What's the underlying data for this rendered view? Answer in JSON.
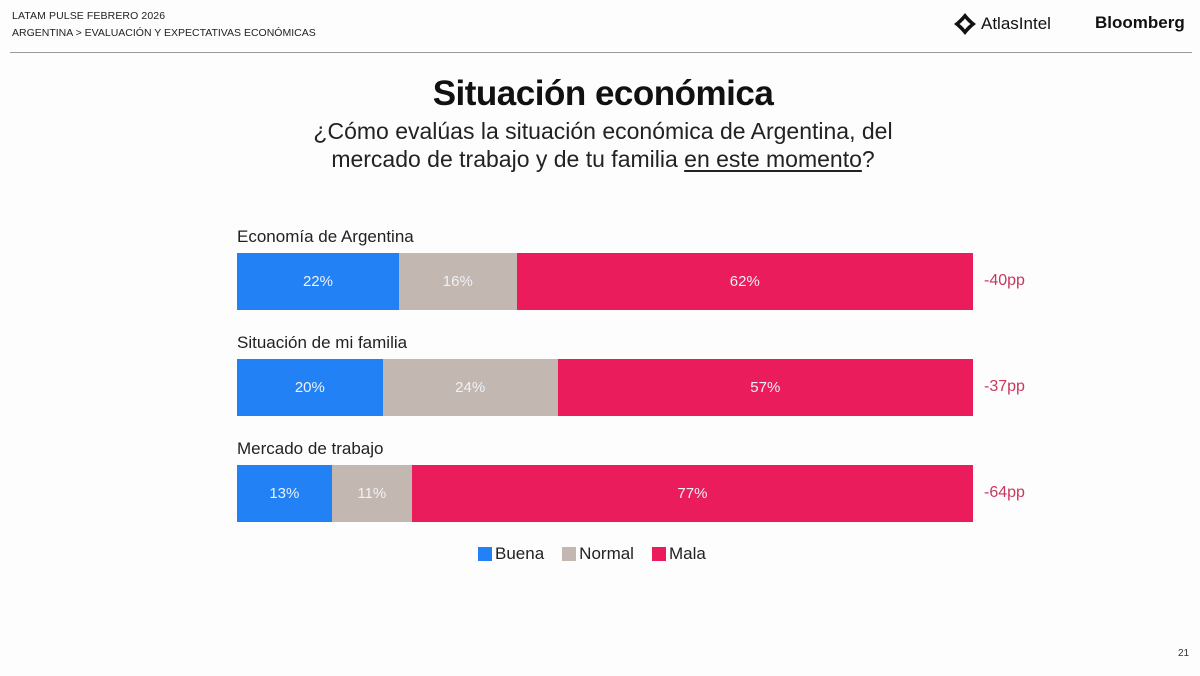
{
  "header": {
    "line1": "LATAM PULSE FEBRERO 2026",
    "line2": "ARGENTINA > EVALUACIÓN Y EXPECTATIVAS ECONÓMICAS",
    "logo_atlas": "AtlasIntel",
    "logo_bloomberg": "Bloomberg"
  },
  "title": "Situación económica",
  "subtitle": {
    "line1": "¿Cómo evalúas la situación económica de Argentina, del",
    "line2_prefix": "mercado de trabajo y de tu familia ",
    "line2_underlined": "en este momento",
    "line2_suffix": "?"
  },
  "page_number": "21",
  "chart_data": {
    "type": "bar",
    "orientation": "horizontal",
    "stacked": true,
    "normalized": true,
    "title": "Situación económica",
    "categories": [
      "Economía de Argentina",
      "Situación de mi familia",
      "Mercado de trabajo"
    ],
    "series": [
      {
        "name": "Buena",
        "color": "#2281f5",
        "values": [
          22,
          20,
          13
        ],
        "labels": [
          "22%",
          "20%",
          "13%"
        ]
      },
      {
        "name": "Normal",
        "color": "#c2b7b1",
        "values": [
          16,
          24,
          11
        ],
        "labels": [
          "16%",
          "24%",
          "11%"
        ]
      },
      {
        "name": "Mala",
        "color": "#ea1c5b",
        "values": [
          62,
          57,
          77
        ],
        "labels": [
          "62%",
          "57%",
          "77%"
        ]
      }
    ],
    "net": [
      "-40pp",
      "-37pp",
      "-64pp"
    ],
    "legend": [
      "Buena",
      "Normal",
      "Mala"
    ],
    "legend_position": "bottom-center",
    "xlabel": "",
    "ylabel": ""
  }
}
